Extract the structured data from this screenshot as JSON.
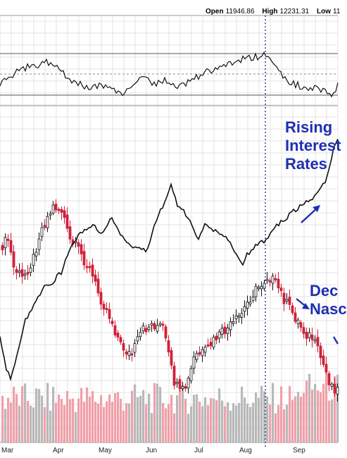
{
  "header": {
    "open_label": "Open",
    "open_value": "11946.86",
    "high_label": "High",
    "high_value": "12231.31",
    "low_label": "Low",
    "low_value": "11"
  },
  "annotations": {
    "rising_line1": "Rising",
    "rising_line2": "Interest",
    "rising_line3": "Rates",
    "declining_line1": "Dec",
    "declining_line2": "Nasc"
  },
  "colors": {
    "up_candle": "#111111",
    "down_candle": "#d0213a",
    "volume_up": "#b8b8b8",
    "volume_down": "#f0a0aa",
    "rate_line": "#111111",
    "annotation": "#1f2fb0",
    "marker_line": "#2233aa"
  },
  "chart_data": [
    {
      "type": "line",
      "title": "",
      "xlabel": "",
      "ylabel": "",
      "x": [
        "Mar",
        "Mar",
        "Apr",
        "Apr",
        "May",
        "May",
        "Jun",
        "Jun",
        "Jul",
        "Jul",
        "Aug",
        "Aug",
        "Sep",
        "Sep"
      ],
      "series": [
        {
          "values": [
            32,
            68,
            60,
            40,
            34,
            33,
            52,
            42,
            44,
            60,
            70,
            48,
            30,
            38
          ]
        }
      ],
      "ylim": [
        0,
        100
      ],
      "grid": true
    },
    {
      "type": "line",
      "title": "",
      "xlabel": "",
      "ylabel": "",
      "x": [
        "Mar",
        "Apr",
        "May",
        "Jun",
        "Jul",
        "Aug",
        "Sep"
      ],
      "series": [
        {
          "values": [
            540,
            410,
            318,
            330,
            300,
            350,
            210
          ]
        }
      ],
      "grid": true
    },
    {
      "type": "candlestick",
      "title": "",
      "xlabel": "",
      "ylabel": "",
      "x": [
        "Mar",
        "Apr",
        "May",
        "Jun",
        "Jul",
        "Aug",
        "Sep"
      ],
      "series": [
        {
          "values": [
            350,
            295,
            460,
            470,
            480,
            390,
            565
          ]
        }
      ],
      "grid": true
    },
    {
      "type": "bar",
      "title": "",
      "xlabel": "",
      "ylabel": "",
      "categories": [
        "Mar",
        "Apr",
        "May",
        "Jun",
        "Jul",
        "Aug",
        "Sep"
      ],
      "series": [
        {
          "values": [
            65,
            60,
            58,
            55,
            60,
            62,
            70
          ]
        }
      ],
      "grid": true
    }
  ],
  "x_labels": [
    "Mar",
    "Apr",
    "May",
    "Jun",
    "Jul",
    "Aug",
    "Sep"
  ]
}
